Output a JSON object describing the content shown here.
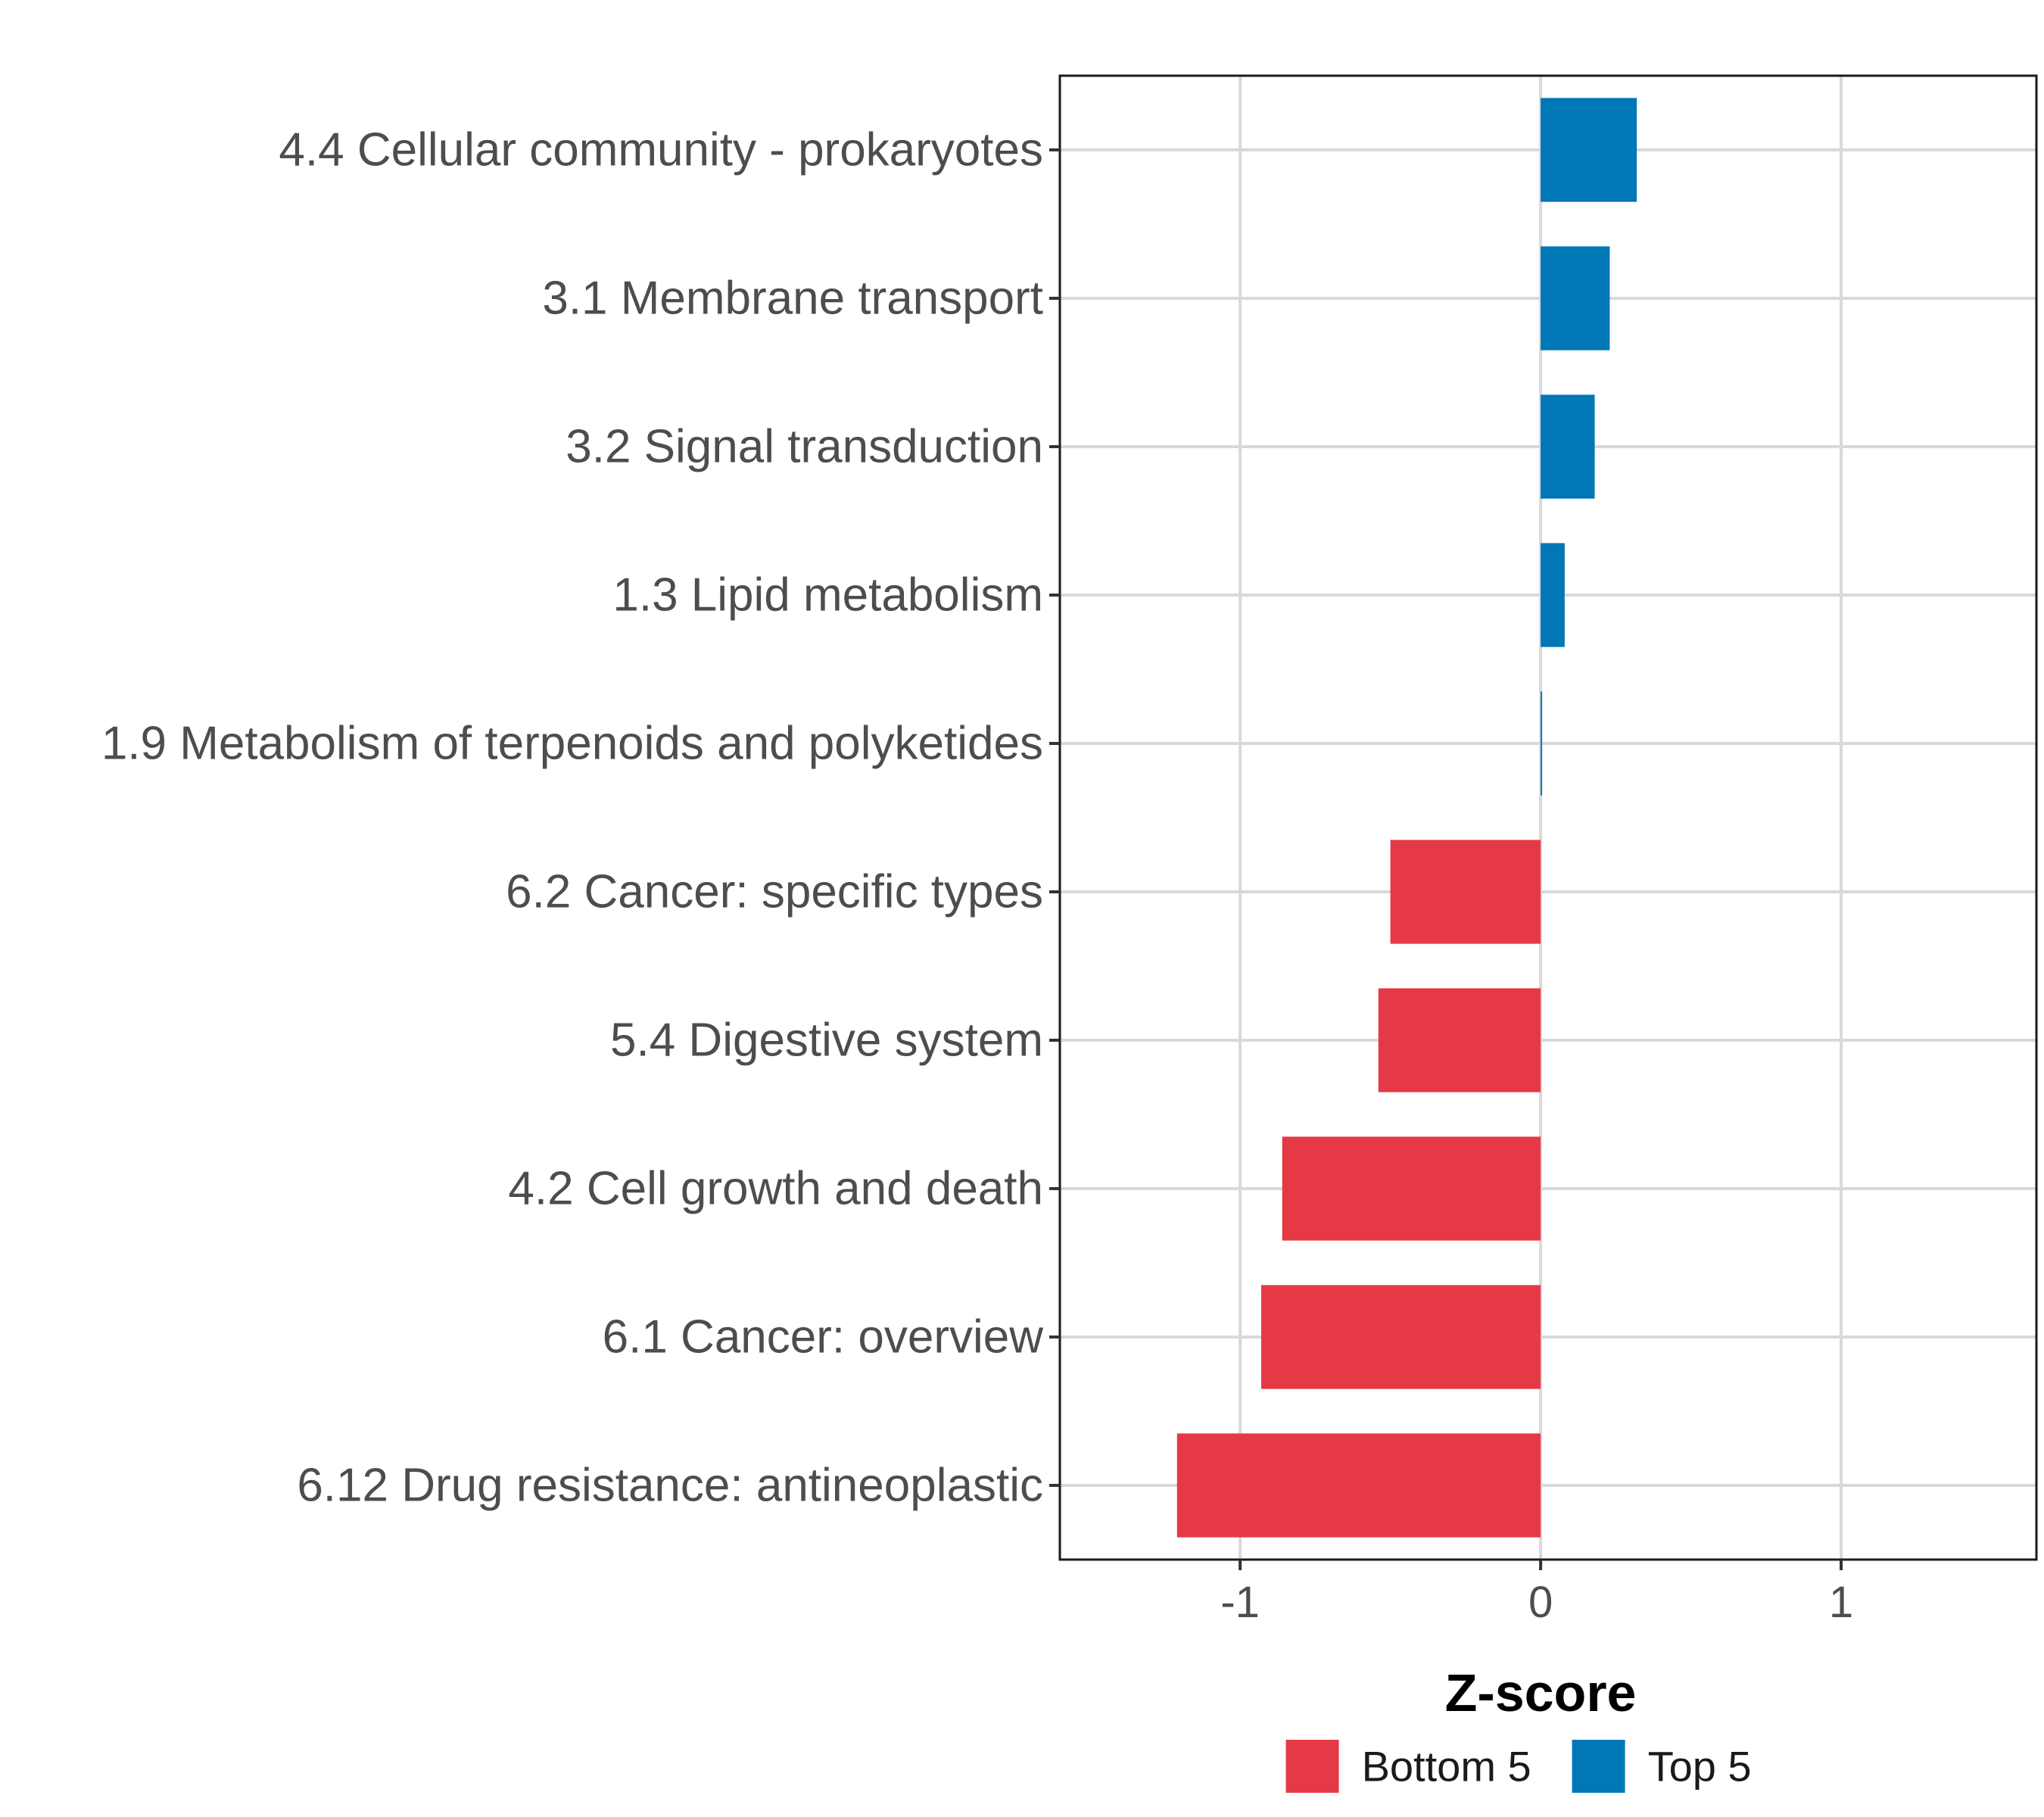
{
  "chart_data": {
    "type": "bar",
    "orientation": "horizontal",
    "title": "",
    "xlabel": "Z-score",
    "ylabel": "",
    "xlim": [
      -1.6,
      1.65
    ],
    "xticks": [
      -1,
      0,
      1
    ],
    "xtick_labels": [
      "-1",
      "0",
      "1"
    ],
    "grid": true,
    "legend_position": "bottom",
    "categories": [
      "4.4 Cellular community - prokaryotes",
      "3.1 Membrane transport",
      "3.2 Signal transduction",
      "1.3 Lipid metabolism",
      "1.9 Metabolism of terpenoids and polyketides",
      "6.2 Cancer: specific types",
      "5.4 Digestive system",
      "4.2 Cell growth and death",
      "6.1 Cancer: overview",
      "6.12 Drug resistance: antineoplastic"
    ],
    "values": [
      0.32,
      0.23,
      0.18,
      0.08,
      0.005,
      -0.5,
      -0.54,
      -0.86,
      -0.93,
      -1.21
    ],
    "groups": [
      "Top 5",
      "Top 5",
      "Top 5",
      "Top 5",
      "Top 5",
      "Bottom 5",
      "Bottom 5",
      "Bottom 5",
      "Bottom 5",
      "Bottom 5"
    ],
    "legend": [
      {
        "name": "Bottom 5",
        "color": "#e63946"
      },
      {
        "name": "Top 5",
        "color": "#0077b6"
      }
    ]
  },
  "colors": {
    "Top 5": "#0077b6",
    "Bottom 5": "#e63946",
    "grid": "#d9d9d9",
    "frame": "#1a1a1a"
  }
}
